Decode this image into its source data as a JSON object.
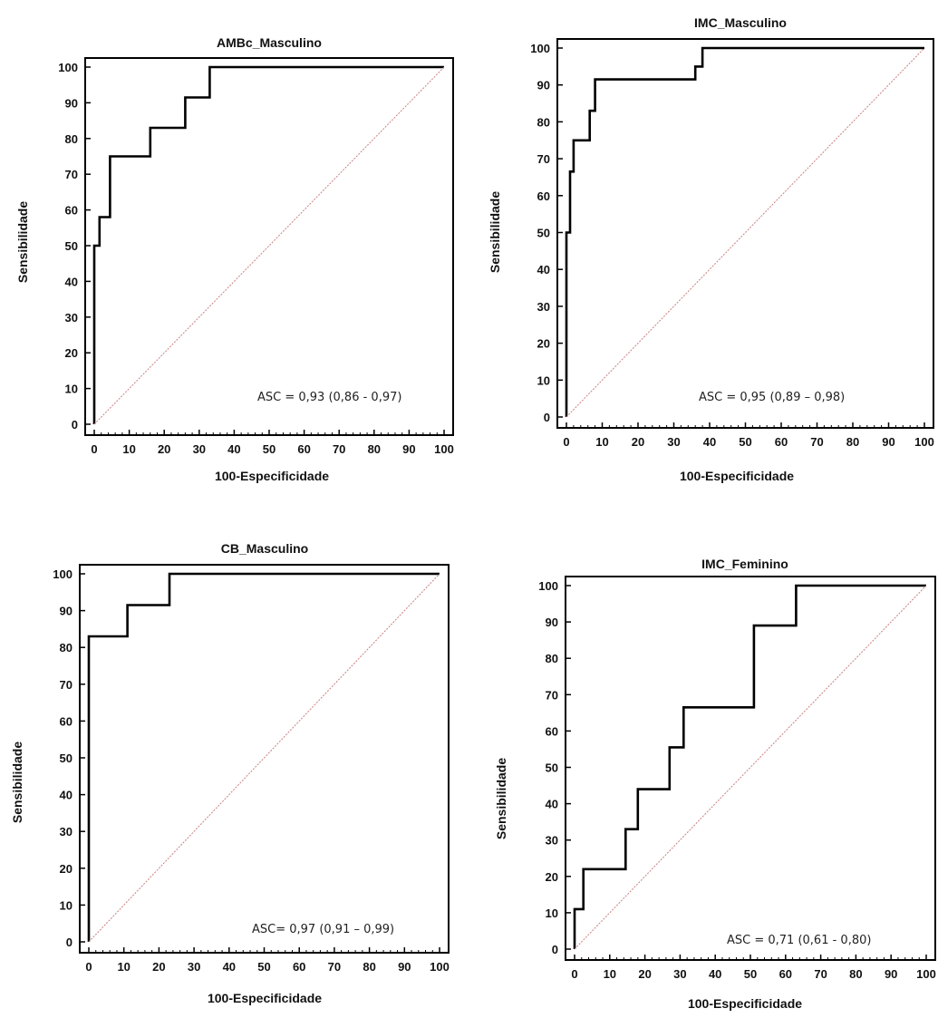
{
  "chart_data": [
    {
      "type": "line",
      "title": "AMBc_Masculino",
      "xlabel": "100-Especificidade",
      "ylabel": "Sensibilidade",
      "xlim": [
        0,
        100
      ],
      "ylim": [
        0,
        100
      ],
      "xticks": [
        0,
        10,
        20,
        30,
        40,
        50,
        60,
        70,
        80,
        90,
        100
      ],
      "yticks": [
        0,
        10,
        20,
        30,
        40,
        50,
        60,
        70,
        80,
        90,
        100
      ],
      "annotation": "ASC = 0,93 (0,86 - 0,97)",
      "series": [
        {
          "role": "roc",
          "color": "#000000",
          "x": [
            0,
            0,
            1.5,
            1.5,
            4.5,
            4.5,
            16,
            16,
            26,
            26,
            33,
            33,
            100
          ],
          "y": [
            0,
            50,
            50,
            58,
            58,
            75,
            75,
            83,
            83,
            91.5,
            91.5,
            100,
            100
          ]
        },
        {
          "role": "diagonal",
          "color": "#c98080",
          "x": [
            0,
            100
          ],
          "y": [
            0,
            100
          ]
        }
      ]
    },
    {
      "type": "line",
      "title": "IMC_Masculino",
      "xlabel": "100-Especificidade",
      "ylabel": "Sensibilidade",
      "xlim": [
        0,
        100
      ],
      "ylim": [
        0,
        100
      ],
      "xticks": [
        0,
        10,
        20,
        30,
        40,
        50,
        60,
        70,
        80,
        90,
        100
      ],
      "yticks": [
        0,
        10,
        20,
        30,
        40,
        50,
        60,
        70,
        80,
        90,
        100
      ],
      "annotation": "ASC = 0,95  (0,89 – 0,98)",
      "series": [
        {
          "role": "roc",
          "color": "#000000",
          "x": [
            0,
            0,
            1,
            1,
            2,
            2,
            6.5,
            6.5,
            8,
            8,
            36,
            36,
            38,
            38,
            100
          ],
          "y": [
            0,
            50,
            50,
            66.5,
            66.5,
            75,
            75,
            83,
            83,
            91.5,
            91.5,
            95,
            95,
            100,
            100
          ]
        },
        {
          "role": "diagonal",
          "color": "#c98080",
          "x": [
            0,
            100
          ],
          "y": [
            0,
            100
          ]
        }
      ]
    },
    {
      "type": "line",
      "title": "CB_Masculino",
      "xlabel": "100-Especificidade",
      "ylabel": "Sensibilidade",
      "xlim": [
        0,
        100
      ],
      "ylim": [
        0,
        100
      ],
      "xticks": [
        0,
        10,
        20,
        30,
        40,
        50,
        60,
        70,
        80,
        90,
        100
      ],
      "yticks": [
        0,
        10,
        20,
        30,
        40,
        50,
        60,
        70,
        80,
        90,
        100
      ],
      "annotation": "ASC= 0,97 (0,91 – 0,99)",
      "series": [
        {
          "role": "roc",
          "color": "#000000",
          "x": [
            0,
            0,
            11,
            11,
            23,
            23,
            100
          ],
          "y": [
            0,
            83,
            83,
            91.5,
            91.5,
            100,
            100
          ]
        },
        {
          "role": "diagonal",
          "color": "#c98080",
          "x": [
            0,
            100
          ],
          "y": [
            0,
            100
          ]
        }
      ]
    },
    {
      "type": "line",
      "title": "IMC_Feminino",
      "xlabel": "100-Especificidade",
      "ylabel": "Sensibilidade",
      "xlim": [
        0,
        100
      ],
      "ylim": [
        0,
        100
      ],
      "xticks": [
        0,
        10,
        20,
        30,
        40,
        50,
        60,
        70,
        80,
        90,
        100
      ],
      "yticks": [
        0,
        10,
        20,
        30,
        40,
        50,
        60,
        70,
        80,
        90,
        100
      ],
      "annotation": "ASC = 0,71 (0,61 - 0,80)",
      "series": [
        {
          "role": "roc",
          "color": "#000000",
          "x": [
            0,
            0,
            2.5,
            2.5,
            14.5,
            14.5,
            18,
            18,
            27,
            27,
            31,
            31,
            51,
            51,
            63,
            63,
            100
          ],
          "y": [
            0,
            11,
            11,
            22,
            22,
            33,
            33,
            44,
            44,
            55.5,
            55.5,
            66.5,
            66.5,
            89,
            89,
            100,
            100
          ]
        },
        {
          "role": "diagonal",
          "color": "#c98080",
          "x": [
            0,
            100
          ],
          "y": [
            0,
            100
          ]
        }
      ]
    }
  ]
}
